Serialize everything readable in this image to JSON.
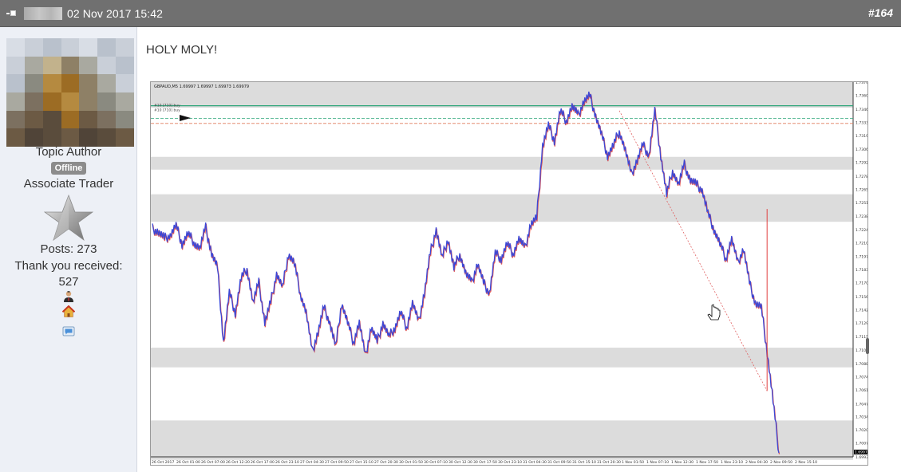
{
  "header": {
    "date": "02 Nov 2017 15:42",
    "post_number": "#164"
  },
  "author": {
    "role": "Topic Author",
    "status": "Offline",
    "rank": "Associate Trader",
    "posts": "Posts: 273",
    "thanks_label": "Thank you received:",
    "thanks_count": "527",
    "icons": [
      "user-icon",
      "home-icon",
      "message-icon"
    ]
  },
  "post": {
    "text": "HOLY MOLY!"
  },
  "chart_data": {
    "type": "line",
    "title": "GBPAUD,M5 1.69997 1.69997 1.69973 1.69979",
    "order_labels": [
      "#10 [710] buy",
      "#10 [710] buy"
    ],
    "y_ticks": [
      "1.73740",
      "1.73605",
      "1.73465",
      "1.73330",
      "1.73195",
      "1.73060",
      "1.72925",
      "1.72785",
      "1.72650",
      "1.72515",
      "1.72380",
      "1.72240",
      "1.72105",
      "1.71970",
      "1.71835",
      "1.71700",
      "1.71560",
      "1.71425",
      "1.71290",
      "1.71155",
      "1.71015",
      "1.70880",
      "1.70745",
      "1.70610",
      "1.70470",
      "1.70340",
      "1.70205",
      "1.70070",
      "1.69930"
    ],
    "current_price": "1.69979",
    "x_ticks": [
      "26 Oct 2017",
      "26 Oct 01:00",
      "26 Oct 07:00",
      "26 Oct 12:20",
      "26 Oct 17:00",
      "26 Oct 23:10",
      "27 Oct 04:30",
      "27 Oct 09:50",
      "27 Oct 15:10",
      "27 Oct 20:30",
      "30 Oct 01:50",
      "30 Oct 07:10",
      "30 Oct 12:30",
      "30 Oct 17:50",
      "30 Oct 23:10",
      "31 Oct 04:30",
      "31 Oct 09:50",
      "31 Oct 15:10",
      "31 Oct 20:30",
      "1 Nov 01:50",
      "1 Nov 07:10",
      "1 Nov 12:30",
      "1 Nov 17:50",
      "1 Nov 23:10",
      "2 Nov 04:30",
      "2 Nov 09:50",
      "2 Nov 15:10"
    ],
    "y_range": [
      1.6993,
      1.7374
    ],
    "series": [
      {
        "values": [
          1.7225,
          1.7222,
          1.7215,
          1.7219,
          1.7228,
          1.721,
          1.722,
          1.7212,
          1.7205,
          1.7226,
          1.72,
          1.7185,
          1.711,
          1.716,
          1.714,
          1.7175,
          1.7185,
          1.715,
          1.717,
          1.713,
          1.715,
          1.718,
          1.7165,
          1.72,
          1.719,
          1.716,
          1.714,
          1.71,
          1.712,
          1.7145,
          1.713,
          1.7105,
          1.715,
          1.713,
          1.711,
          1.713,
          1.7095,
          1.7125,
          1.711,
          1.713,
          1.7115,
          1.7125,
          1.714,
          1.7125,
          1.715,
          1.713,
          1.716,
          1.72,
          1.7225,
          1.7195,
          1.7215,
          1.7185,
          1.72,
          1.718,
          1.717,
          1.719,
          1.717,
          1.716,
          1.72,
          1.7195,
          1.721,
          1.72,
          1.7215,
          1.7205,
          1.723,
          1.7235,
          1.731,
          1.733,
          1.7315,
          1.7345,
          1.7335,
          1.735,
          1.734,
          1.7355,
          1.736,
          1.734,
          1.732,
          1.73,
          1.731,
          1.7325,
          1.7305,
          1.728,
          1.7295,
          1.731,
          1.73,
          1.7345,
          1.73,
          1.726,
          1.7285,
          1.727,
          1.729,
          1.7275,
          1.727,
          1.7265,
          1.724,
          1.7225,
          1.721,
          1.7195,
          1.7215,
          1.719,
          1.7205,
          1.717,
          1.715,
          1.7145,
          1.71,
          1.705,
          1.6997
        ],
        "color": "#3b47d6"
      }
    ],
    "zones": [
      {
        "from": 1.7348,
        "to": 1.7374
      },
      {
        "from": 1.7285,
        "to": 1.7298
      },
      {
        "from": 1.7232,
        "to": 1.726
      },
      {
        "from": 1.7084,
        "to": 1.7104
      },
      {
        "from": 1.699,
        "to": 1.703
      }
    ],
    "levels": [
      {
        "value": 1.735,
        "color": "#2fa57a"
      },
      {
        "value": 1.7337,
        "color": "#2fa57a"
      },
      {
        "value": 1.7332,
        "color": "#e07a5a"
      }
    ],
    "grid": false,
    "colors": {
      "candles_up": "#3b47d6",
      "candles_down": "#d93a3a",
      "zone": "#dcdcdc",
      "level_green": "#2fa57a",
      "level_red": "#e07a5a"
    }
  },
  "colors": {
    "header_bg": "#707070",
    "sidebar_bg": "#edf0f6",
    "badge_bg": "#8c8c8c"
  }
}
